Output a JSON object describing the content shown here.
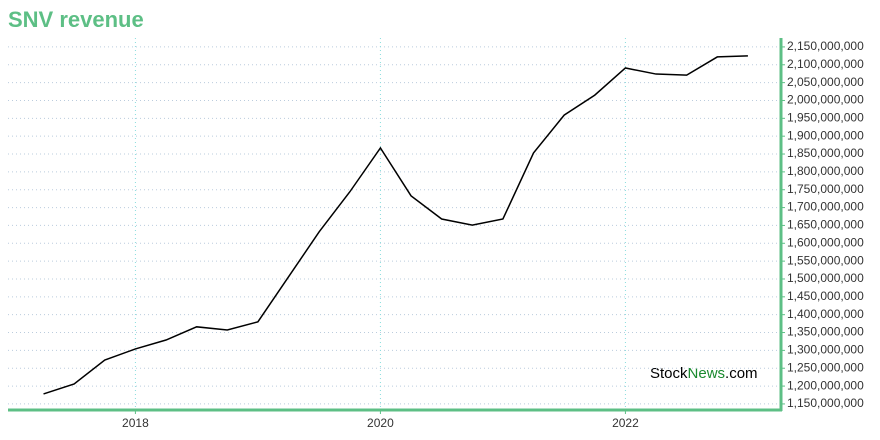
{
  "chart_data": {
    "type": "line",
    "title": "SNV revenue",
    "x": [
      2017.25,
      2017.5,
      2017.75,
      2018.0,
      2018.25,
      2018.5,
      2018.75,
      2019.0,
      2019.25,
      2019.5,
      2019.75,
      2020.0,
      2020.25,
      2020.5,
      2020.75,
      2021.0,
      2021.25,
      2021.5,
      2021.75,
      2022.0,
      2022.25,
      2022.5,
      2022.75,
      2023.0
    ],
    "series": [
      {
        "name": "SNV revenue",
        "color": "#000000",
        "values": [
          1178000000,
          1206000000,
          1273000000,
          1304000000,
          1329000000,
          1366000000,
          1357000000,
          1380000000,
          1506000000,
          1632000000,
          1744000000,
          1867000000,
          1733000000,
          1668000000,
          1651000000,
          1668000000,
          1853000000,
          1959000000,
          2015000000,
          2091000000,
          2074000000,
          2071000000,
          2122000000,
          2125000000
        ]
      }
    ],
    "xlim": [
      2016.96,
      2023.27
    ],
    "xticks": [
      2018,
      2020,
      2022
    ],
    "ylim": [
      1133000000,
      2175000000
    ],
    "yticks": [
      {
        "value": 1150000000,
        "label": "1,150,000,000"
      },
      {
        "value": 1200000000,
        "label": "1,200,000,000"
      },
      {
        "value": 1250000000,
        "label": "1,250,000,000"
      },
      {
        "value": 1300000000,
        "label": "1,300,000,000"
      },
      {
        "value": 1350000000,
        "label": "1,350,000,000"
      },
      {
        "value": 1400000000,
        "label": "1,400,000,000"
      },
      {
        "value": 1450000000,
        "label": "1,450,000,000"
      },
      {
        "value": 1500000000,
        "label": "1,500,000,000"
      },
      {
        "value": 1550000000,
        "label": "1,550,000,000"
      },
      {
        "value": 1600000000,
        "label": "1,600,000,000"
      },
      {
        "value": 1650000000,
        "label": "1,650,000,000"
      },
      {
        "value": 1700000000,
        "label": "1,700,000,000"
      },
      {
        "value": 1750000000,
        "label": "1,750,000,000"
      },
      {
        "value": 1800000000,
        "label": "1,800,000,000"
      },
      {
        "value": 1850000000,
        "label": "1,850,000,000"
      },
      {
        "value": 1900000000,
        "label": "1,900,000,000"
      },
      {
        "value": 1950000000,
        "label": "1,950,000,000"
      },
      {
        "value": 2000000000,
        "label": "2,000,000,000"
      },
      {
        "value": 2050000000,
        "label": "2,050,000,000"
      },
      {
        "value": 2100000000,
        "label": "2,100,000,000"
      },
      {
        "value": 2150000000,
        "label": "2,150,000,000"
      }
    ],
    "grid": true,
    "axis_color": "#5dbf85",
    "watermark": [
      "Stock",
      "News",
      ".com"
    ]
  }
}
